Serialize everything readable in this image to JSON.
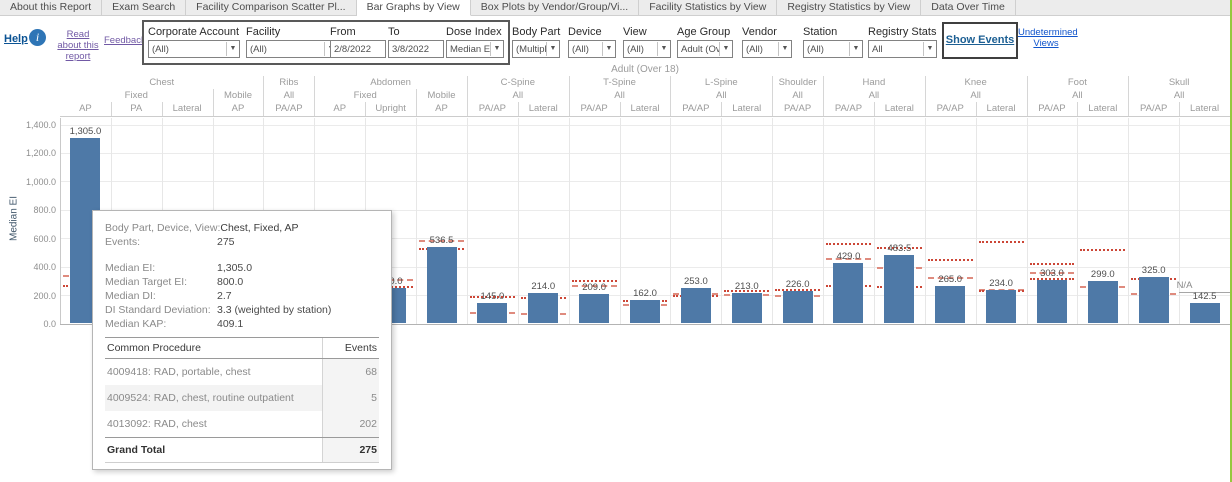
{
  "colors": {
    "bar": "#4e79a7",
    "ref_dotted": "#cc4636",
    "ref_dashed": "#df8b7e",
    "green_edge": "#97c83e",
    "na_line": "#a6a6a6"
  },
  "tabs": {
    "items": [
      "About this Report",
      "Exam Search",
      "Facility Comparison Scatter Pl...",
      "Bar Graphs by View",
      "Box Plots by Vendor/Group/Vi...",
      "Facility Statistics by View",
      "Registry Statistics by View",
      "Data Over Time"
    ],
    "active": "Bar Graphs by View"
  },
  "toolbar": {
    "help": "Help",
    "info_icon": "i",
    "read_about": "Read about this report",
    "feedback": "Feedback",
    "filters_boxed": [
      {
        "label": "Corporate Account",
        "value": "(All)",
        "type": "dropdown"
      },
      {
        "label": "Facility",
        "value": "(All)",
        "type": "dropdown"
      },
      {
        "label": "From",
        "value": "2/8/2022",
        "type": "input"
      },
      {
        "label": "To",
        "value": "3/8/2022",
        "type": "input"
      },
      {
        "label": "Dose Index",
        "value": "Median EI",
        "type": "dropdown"
      }
    ],
    "filters": [
      {
        "label": "Body Part",
        "value": "(Multipl...",
        "type": "dropdown"
      },
      {
        "label": "Device",
        "value": "(All)",
        "type": "dropdown"
      },
      {
        "label": "View",
        "value": "(All)",
        "type": "dropdown"
      },
      {
        "label": "Age Group",
        "value": "Adult (Ove...",
        "type": "dropdown"
      },
      {
        "label": "Vendor",
        "value": "(All)",
        "type": "dropdown"
      },
      {
        "label": "Station",
        "value": "(All)",
        "type": "dropdown"
      },
      {
        "label": "Registry Stats",
        "value": "All",
        "type": "dropdown"
      }
    ],
    "show_events": "Show Events",
    "undetermined": "Undetermined Views"
  },
  "chart_data": {
    "type": "bar",
    "title": "Adult (Over 18)",
    "ylabel": "Median EI",
    "ylim": [
      0,
      1400
    ],
    "ytick_labels": [
      "1,400.0",
      "1,200.0",
      "1,000.0",
      "800.0",
      "600.0",
      "400.0",
      "200.0",
      "0.0"
    ],
    "grid": true,
    "na_label": "N/A",
    "groups": [
      {
        "body_part": "Chest",
        "devices": [
          {
            "device": "Fixed",
            "views": [
              "AP",
              "PA",
              "Lateral"
            ]
          },
          {
            "device": "Mobile",
            "views": [
              "AP"
            ]
          }
        ]
      },
      {
        "body_part": "Ribs",
        "devices": [
          {
            "device": "All",
            "views": [
              "PA/AP"
            ]
          }
        ]
      },
      {
        "body_part": "Abdomen",
        "devices": [
          {
            "device": "Fixed",
            "views": [
              "AP",
              "Upright"
            ]
          },
          {
            "device": "Mobile",
            "views": [
              "AP"
            ]
          }
        ]
      },
      {
        "body_part": "C-Spine",
        "devices": [
          {
            "device": "All",
            "views": [
              "PA/AP",
              "Lateral"
            ]
          }
        ]
      },
      {
        "body_part": "T-Spine",
        "devices": [
          {
            "device": "All",
            "views": [
              "PA/AP",
              "Lateral"
            ]
          }
        ]
      },
      {
        "body_part": "L-Spine",
        "devices": [
          {
            "device": "All",
            "views": [
              "PA/AP",
              "Lateral"
            ]
          }
        ]
      },
      {
        "body_part": "Shoulder",
        "devices": [
          {
            "device": "All",
            "views": [
              "PA/AP"
            ]
          }
        ]
      },
      {
        "body_part": "Hand",
        "devices": [
          {
            "device": "All",
            "views": [
              "PA/AP",
              "Lateral"
            ]
          }
        ]
      },
      {
        "body_part": "Knee",
        "devices": [
          {
            "device": "All",
            "views": [
              "PA/AP",
              "Lateral"
            ]
          }
        ]
      },
      {
        "body_part": "Foot",
        "devices": [
          {
            "device": "All",
            "views": [
              "PA/AP",
              "Lateral"
            ]
          }
        ]
      },
      {
        "body_part": "Skull",
        "devices": [
          {
            "device": "All",
            "views": [
              "PA/AP",
              "Lateral"
            ]
          }
        ]
      }
    ],
    "columns": [
      {
        "body_part": "Chest",
        "device": "Fixed",
        "view": "AP",
        "value": 1305.0,
        "label": "1,305.0",
        "refs": [
          {
            "style": "dashed",
            "v": 331
          },
          {
            "style": "dotted",
            "v": 267
          }
        ]
      },
      {
        "body_part": "Chest",
        "device": "Fixed",
        "view": "PA",
        "value": null,
        "label": "",
        "refs": []
      },
      {
        "body_part": "Chest",
        "device": "Fixed",
        "view": "Lateral",
        "value": null,
        "label": "",
        "refs": []
      },
      {
        "body_part": "Chest",
        "device": "Mobile",
        "view": "AP",
        "value": null,
        "label": "",
        "refs": []
      },
      {
        "body_part": "Ribs",
        "device": "All",
        "view": "PA/AP",
        "value": null,
        "label": "",
        "refs": []
      },
      {
        "body_part": "Abdomen",
        "device": "Fixed",
        "view": "AP",
        "value": null,
        "label": "",
        "refs": []
      },
      {
        "body_part": "Abdomen",
        "device": "Fixed",
        "view": "Upright",
        "value": 250.0,
        "label": "250.0",
        "refs": [
          {
            "style": "dashed",
            "v": 303
          },
          {
            "style": "dotted",
            "v": 260
          }
        ]
      },
      {
        "body_part": "Abdomen",
        "device": "Mobile",
        "view": "AP",
        "value": 536.5,
        "label": "536.5",
        "refs": [
          {
            "style": "dashed",
            "v": 579
          },
          {
            "style": "dotted",
            "v": 526
          }
        ]
      },
      {
        "body_part": "C-Spine",
        "device": "All",
        "view": "PA/AP",
        "value": 145.0,
        "label": "145.0",
        "refs": [
          {
            "style": "dotted",
            "v": 185
          },
          {
            "style": "dashed",
            "v": 75
          }
        ]
      },
      {
        "body_part": "C-Spine",
        "device": "All",
        "view": "Lateral",
        "value": 214.0,
        "label": "214.0",
        "refs": [
          {
            "style": "dotted",
            "v": 178
          },
          {
            "style": "dashed",
            "v": 70
          }
        ]
      },
      {
        "body_part": "T-Spine",
        "device": "All",
        "view": "PA/AP",
        "value": 209.0,
        "label": "209.0",
        "refs": [
          {
            "style": "dotted",
            "v": 298
          },
          {
            "style": "dashed",
            "v": 267
          }
        ]
      },
      {
        "body_part": "T-Spine",
        "device": "All",
        "view": "Lateral",
        "value": 162.0,
        "label": "162.0",
        "refs": [
          {
            "style": "dotted",
            "v": 155
          },
          {
            "style": "dashed",
            "v": 127
          }
        ]
      },
      {
        "body_part": "L-Spine",
        "device": "All",
        "view": "PA/AP",
        "value": 253.0,
        "label": "253.0",
        "refs": [
          {
            "style": "dashed",
            "v": 211
          },
          {
            "style": "dotted",
            "v": 190
          }
        ]
      },
      {
        "body_part": "L-Spine",
        "device": "All",
        "view": "Lateral",
        "value": 213.0,
        "label": "213.0",
        "refs": [
          {
            "style": "dotted",
            "v": 232
          },
          {
            "style": "dashed",
            "v": 204
          }
        ]
      },
      {
        "body_part": "Shoulder",
        "device": "All",
        "view": "PA/AP",
        "value": 226.0,
        "label": "226.0",
        "refs": [
          {
            "style": "dotted",
            "v": 239
          },
          {
            "style": "dashed",
            "v": 190
          }
        ]
      },
      {
        "body_part": "Hand",
        "device": "All",
        "view": "PA/AP",
        "value": 429.0,
        "label": "429.0",
        "refs": [
          {
            "style": "dotted",
            "v": 556
          },
          {
            "style": "dashed",
            "v": 455
          },
          {
            "style": "dotted",
            "v": 267
          }
        ]
      },
      {
        "body_part": "Hand",
        "device": "All",
        "view": "Lateral",
        "value": 483.5,
        "label": "483.5",
        "refs": [
          {
            "style": "dotted",
            "v": 530
          },
          {
            "style": "dashed",
            "v": 389
          },
          {
            "style": "dotted",
            "v": 255
          }
        ]
      },
      {
        "body_part": "Knee",
        "device": "All",
        "view": "PA/AP",
        "value": 265.0,
        "label": "265.0",
        "refs": [
          {
            "style": "dotted",
            "v": 448
          },
          {
            "style": "dashed",
            "v": 319
          }
        ]
      },
      {
        "body_part": "Knee",
        "device": "All",
        "view": "Lateral",
        "value": 234.0,
        "label": "234.0",
        "refs": [
          {
            "style": "dotted",
            "v": 570
          },
          {
            "style": "dashed",
            "v": 239
          },
          {
            "style": "dotted",
            "v": 228
          }
        ]
      },
      {
        "body_part": "Foot",
        "device": "All",
        "view": "PA/AP",
        "value": 303.0,
        "label": "303.0",
        "refs": [
          {
            "style": "dotted",
            "v": 420
          },
          {
            "style": "dashed",
            "v": 357
          },
          {
            "style": "dotted",
            "v": 315
          }
        ]
      },
      {
        "body_part": "Foot",
        "device": "All",
        "view": "Lateral",
        "value": 299.0,
        "label": "299.0",
        "refs": [
          {
            "style": "dotted",
            "v": 514
          },
          {
            "style": "dashed",
            "v": 255
          }
        ]
      },
      {
        "body_part": "Skull",
        "device": "All",
        "view": "PA/AP",
        "value": 325.0,
        "label": "325.0",
        "refs": [
          {
            "style": "dotted",
            "v": 315
          },
          {
            "style": "dashed",
            "v": 209
          }
        ]
      },
      {
        "body_part": "Skull",
        "device": "All",
        "view": "Lateral",
        "value": 142.5,
        "label": "142.5",
        "refs": [],
        "na_line": 220
      }
    ]
  },
  "tooltip": {
    "rows_top": [
      {
        "label": "Body Part, Device, View:",
        "value": "Chest, Fixed, AP",
        "dark": true
      },
      {
        "label": "Events:",
        "value": "275",
        "dark": false
      }
    ],
    "rows_stats": [
      {
        "label": "Median EI:",
        "value": "1,305.0"
      },
      {
        "label": "Median Target EI:",
        "value": "800.0"
      },
      {
        "label": "Median DI:",
        "value": "2.7"
      },
      {
        "label": "DI Standard Deviation:",
        "value": "3.3 (weighted by station)"
      },
      {
        "label": "Median KAP:",
        "value": "409.1"
      }
    ],
    "table": {
      "headers": [
        "Common Procedure",
        "Events"
      ],
      "rows": [
        {
          "name": "4009418: RAD, portable, chest",
          "events": "68"
        },
        {
          "name": "4009524: RAD, chest, routine outpatient",
          "events": "5"
        },
        {
          "name": "4013092: RAD, chest",
          "events": "202"
        }
      ],
      "total": {
        "name": "Grand Total",
        "events": "275"
      }
    }
  }
}
